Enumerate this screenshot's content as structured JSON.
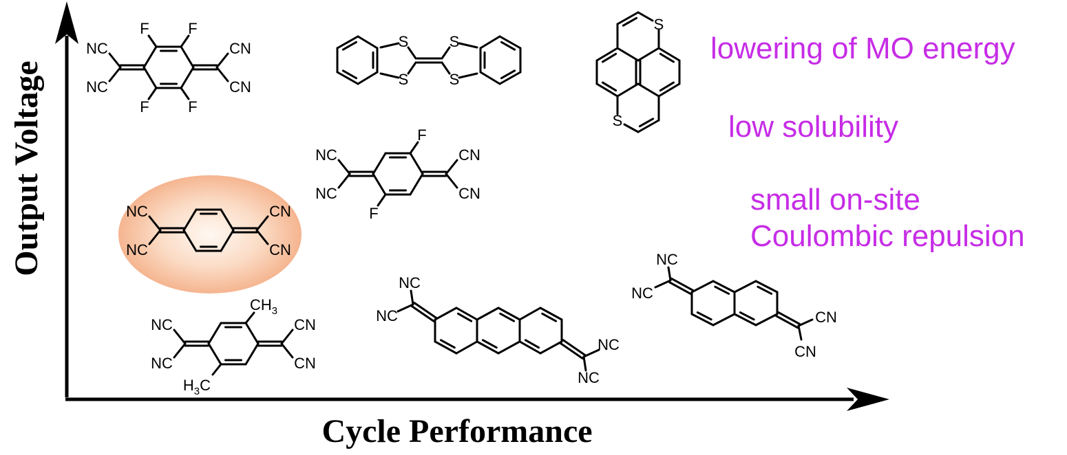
{
  "axes": {
    "y_label": "Output Voltage",
    "x_label": "Cycle Performance"
  },
  "annotations": {
    "mo_energy": "lowering of MO energy",
    "solubility": "low solubility",
    "coulombic_line1": "small on-site",
    "coulombic_line2": "Coulombic repulsion",
    "color": "#c62ce6"
  },
  "highlight": {
    "shape": "ellipse",
    "center_color": "#fff8f2",
    "mid_color": "#fbdcc6",
    "edge_color": "#f5b590"
  },
  "colors": {
    "structure_line": "#000000",
    "axis_line": "#000000",
    "background": "#ffffff"
  },
  "molecules": [
    {
      "id": "f4tcnq",
      "labels": [
        "NC",
        "NC",
        "CN",
        "CN",
        "F",
        "F",
        "F",
        "F"
      ]
    },
    {
      "id": "dbttf",
      "labels": [
        "S",
        "S",
        "S",
        "S"
      ]
    },
    {
      "id": "dithiapyrene",
      "labels": [
        "S",
        "S"
      ]
    },
    {
      "id": "f2tcnq",
      "labels": [
        "NC",
        "NC",
        "CN",
        "CN",
        "F",
        "F"
      ]
    },
    {
      "id": "tcnq",
      "highlighted": true,
      "labels": [
        "NC",
        "NC",
        "CN",
        "CN"
      ]
    },
    {
      "id": "me2tcnq",
      "labels": [
        "NC",
        "NC",
        "CN",
        "CN",
        "CH~3~",
        "H~3~C"
      ]
    },
    {
      "id": "tcnaq",
      "labels": [
        "NC",
        "NC",
        "NC",
        "NC"
      ]
    },
    {
      "id": "tnap",
      "labels": [
        "NC",
        "NC",
        "CN",
        "CN"
      ]
    }
  ]
}
